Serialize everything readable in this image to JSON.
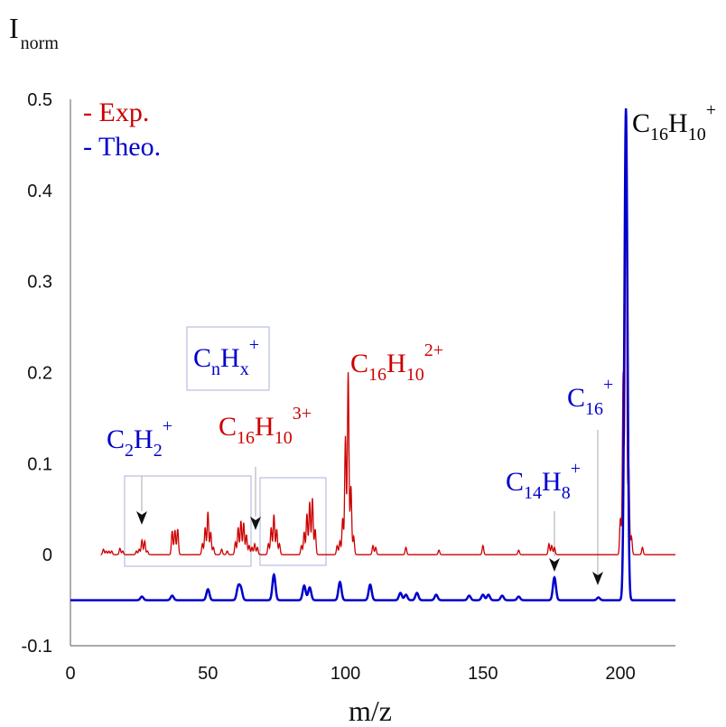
{
  "chart_data": {
    "type": "line",
    "title": "",
    "ylabel": {
      "main": "I",
      "sub": "norm"
    },
    "xlabel": "m/z",
    "xlim": [
      0,
      220
    ],
    "ylim": [
      -0.1,
      0.5
    ],
    "x_ticks": [
      0,
      50,
      100,
      150,
      200
    ],
    "y_ticks": [
      -0.1,
      0,
      0.1,
      0.2,
      0.3,
      0.4,
      0.5
    ],
    "x_tick_labels": [
      "0",
      "50",
      "100",
      "150",
      "200"
    ],
    "y_tick_labels": [
      "-0.1",
      "0",
      "0.1",
      "0.2",
      "0.3",
      "0.4",
      "0.5"
    ],
    "grid": false,
    "legend_position": "top-left",
    "legend": [
      {
        "label": "- Exp.",
        "color": "#cc0000"
      },
      {
        "label": "- Theo.",
        "color": "#0000cc"
      }
    ],
    "series": [
      {
        "name": "Exp.",
        "color": "#cc0000",
        "baseline": 0,
        "x_range": [
          11,
          220
        ],
        "peaks": [
          [
            12,
            0.006
          ],
          [
            13,
            0.004
          ],
          [
            14,
            0.004
          ],
          [
            15,
            0.004
          ],
          [
            18,
            0.007
          ],
          [
            19,
            0.004
          ],
          [
            24,
            0.004
          ],
          [
            25,
            0.006
          ],
          [
            26,
            0.016
          ],
          [
            27,
            0.015
          ],
          [
            28,
            0.004
          ],
          [
            37,
            0.026
          ],
          [
            38,
            0.027
          ],
          [
            39,
            0.028
          ],
          [
            48,
            0.012
          ],
          [
            49,
            0.03
          ],
          [
            50,
            0.047
          ],
          [
            51,
            0.025
          ],
          [
            52,
            0.008
          ],
          [
            55,
            0.006
          ],
          [
            57,
            0.004
          ],
          [
            60,
            0.014
          ],
          [
            61,
            0.03
          ],
          [
            62,
            0.037
          ],
          [
            63,
            0.035
          ],
          [
            64,
            0.022
          ],
          [
            65,
            0.01
          ],
          [
            66,
            0.008
          ],
          [
            67,
            0.012
          ],
          [
            68,
            0.008
          ],
          [
            72,
            0.012
          ],
          [
            73,
            0.03
          ],
          [
            74,
            0.044
          ],
          [
            75,
            0.028
          ],
          [
            76,
            0.012
          ],
          [
            84,
            0.01
          ],
          [
            85,
            0.025
          ],
          [
            86,
            0.045
          ],
          [
            87,
            0.058
          ],
          [
            88,
            0.062
          ],
          [
            89,
            0.028
          ],
          [
            97,
            0.01
          ],
          [
            98,
            0.015
          ],
          [
            99,
            0.04
          ],
          [
            100,
            0.13
          ],
          [
            101,
            0.2
          ],
          [
            102,
            0.075
          ],
          [
            103,
            0.02
          ],
          [
            110,
            0.01
          ],
          [
            111,
            0.008
          ],
          [
            122,
            0.008
          ],
          [
            134,
            0.005
          ],
          [
            150,
            0.01
          ],
          [
            163,
            0.005
          ],
          [
            174,
            0.012
          ],
          [
            175,
            0.01
          ],
          [
            176,
            0.008
          ],
          [
            200,
            0.04
          ],
          [
            201,
            0.2
          ],
          [
            202,
            0.48
          ],
          [
            203,
            0.1
          ],
          [
            204,
            0.02
          ],
          [
            208,
            0.008
          ]
        ]
      },
      {
        "name": "Theo.",
        "color": "#0000cc",
        "baseline": -0.05,
        "x_range": [
          0,
          220
        ],
        "peaks": [
          [
            26,
            0.004
          ],
          [
            37,
            0.005
          ],
          [
            50,
            0.012
          ],
          [
            61,
            0.014
          ],
          [
            62,
            0.012
          ],
          [
            74,
            0.028
          ],
          [
            85,
            0.016
          ],
          [
            87,
            0.014
          ],
          [
            98,
            0.02
          ],
          [
            109,
            0.017
          ],
          [
            120,
            0.008
          ],
          [
            122,
            0.006
          ],
          [
            126,
            0.008
          ],
          [
            133,
            0.006
          ],
          [
            145,
            0.005
          ],
          [
            150,
            0.006
          ],
          [
            152,
            0.006
          ],
          [
            157,
            0.005
          ],
          [
            163,
            0.004
          ],
          [
            176,
            0.025
          ],
          [
            192,
            0.003
          ],
          [
            202,
            0.54
          ]
        ]
      }
    ],
    "annotations": [
      {
        "base": "C",
        "sub": "2",
        "mid": "H",
        "sub2": "2",
        "sup": "+",
        "color": "#0000cc"
      },
      {
        "base": "C",
        "sub": "n",
        "mid": "H",
        "sub2": "x",
        "sup": "+",
        "color": "#0000cc"
      },
      {
        "base": "C",
        "sub": "16",
        "mid": "H",
        "sub2": "10",
        "sup": "3+",
        "color": "#cc0000"
      },
      {
        "base": "C",
        "sub": "16",
        "mid": "H",
        "sub2": "10",
        "sup": "2+",
        "color": "#cc0000"
      },
      {
        "base": "C",
        "sub": "14",
        "mid": "H",
        "sub2": "8",
        "sup": "+",
        "color": "#0000cc"
      },
      {
        "base": "C",
        "sub": "16",
        "mid": "",
        "sub2": "",
        "sup": "+",
        "color": "#0000cc"
      },
      {
        "base": "C",
        "sub": "16",
        "mid": "H",
        "sub2": "10",
        "sup": "+",
        "color": "#000000"
      }
    ]
  }
}
